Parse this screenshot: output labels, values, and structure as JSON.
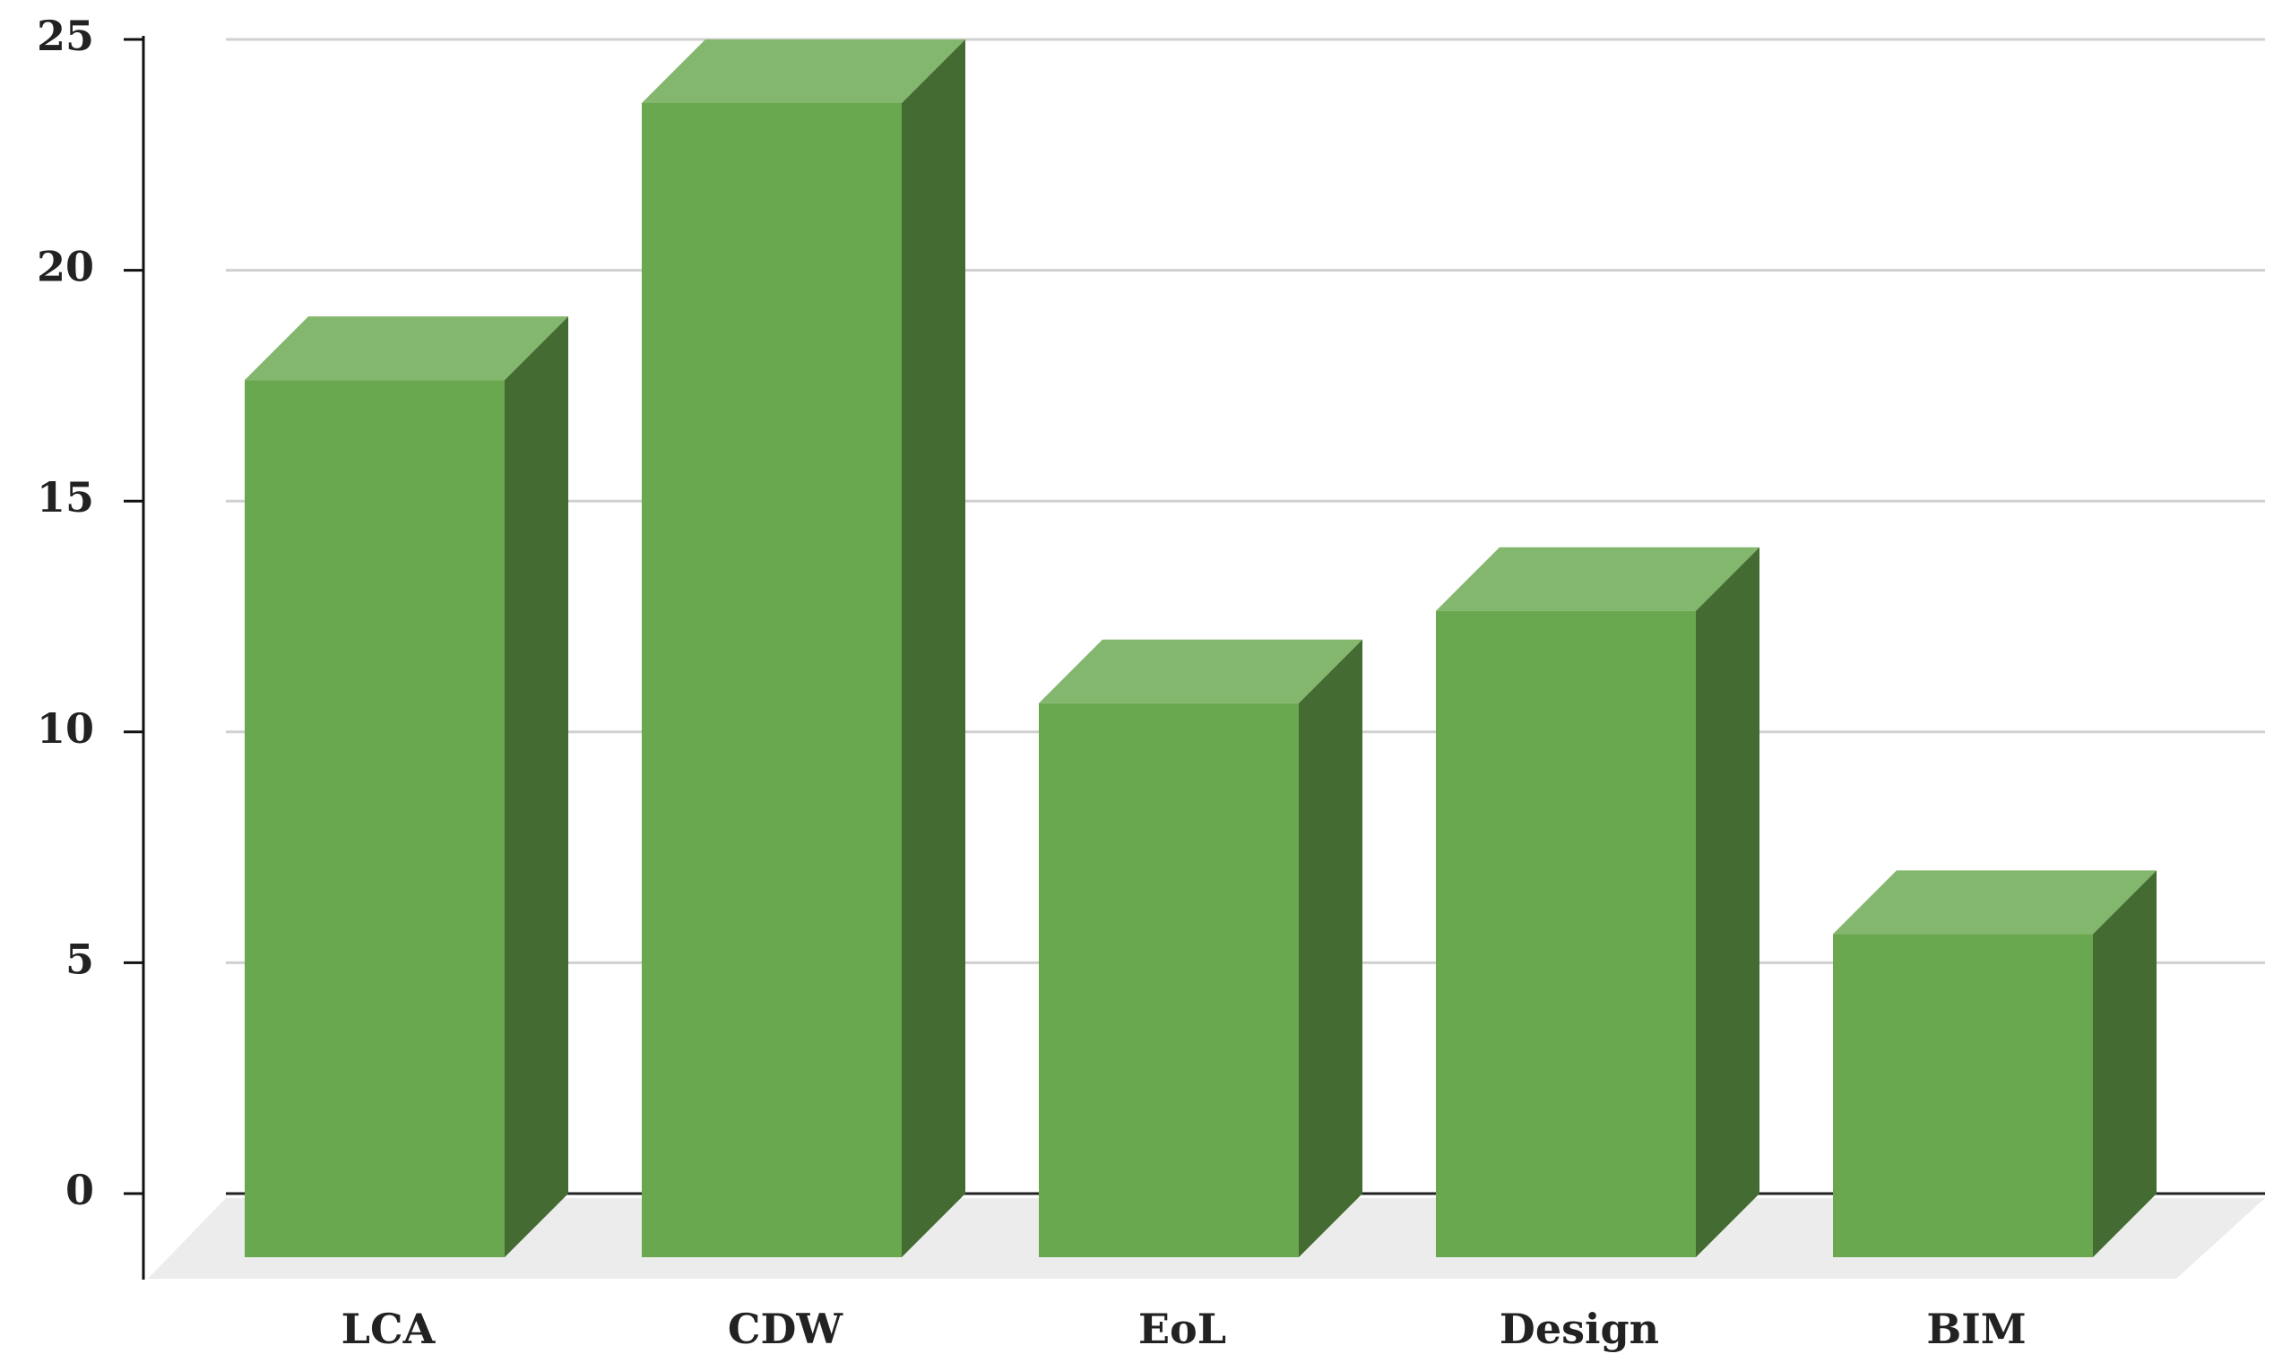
{
  "chart_data": {
    "type": "bar3d",
    "categories": [
      "LCA",
      "CDW",
      "EoL",
      "Design",
      "BIM"
    ],
    "values": [
      19,
      25,
      12,
      14,
      7
    ],
    "color": "#6aa84f",
    "ylim": [
      0,
      25
    ],
    "yticks": [
      0,
      5,
      10,
      15,
      20,
      25
    ],
    "grid": true
  }
}
